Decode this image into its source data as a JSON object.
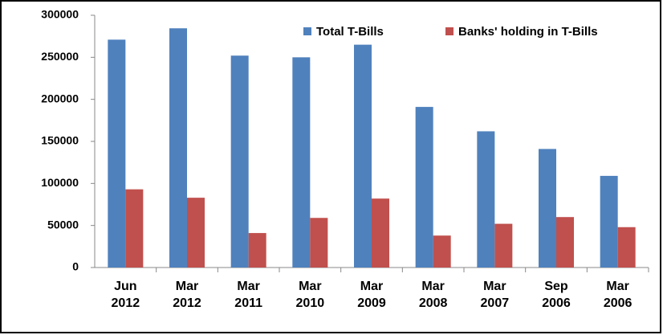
{
  "chart_data": {
    "type": "bar",
    "categories": [
      "Jun 2012",
      "Mar 2012",
      "Mar 2011",
      "Mar 2010",
      "Mar 2009",
      "Mar 2008",
      "Mar 2007",
      "Sep 2006",
      "Mar 2006"
    ],
    "series": [
      {
        "name": "Total T-Bills",
        "color": "#4f81bd",
        "values": [
          271000,
          284500,
          252000,
          250000,
          265000,
          191000,
          162000,
          141000,
          109000
        ]
      },
      {
        "name": "Banks' holding in T-Bills",
        "color": "#c0504d",
        "values": [
          93000,
          83000,
          41000,
          59000,
          82000,
          38000,
          52000,
          60000,
          48000
        ]
      }
    ],
    "ylim": [
      0,
      300000
    ],
    "yticks": [
      0,
      50000,
      100000,
      150000,
      200000,
      250000,
      300000
    ],
    "grid": false,
    "legend": "top-right"
  }
}
